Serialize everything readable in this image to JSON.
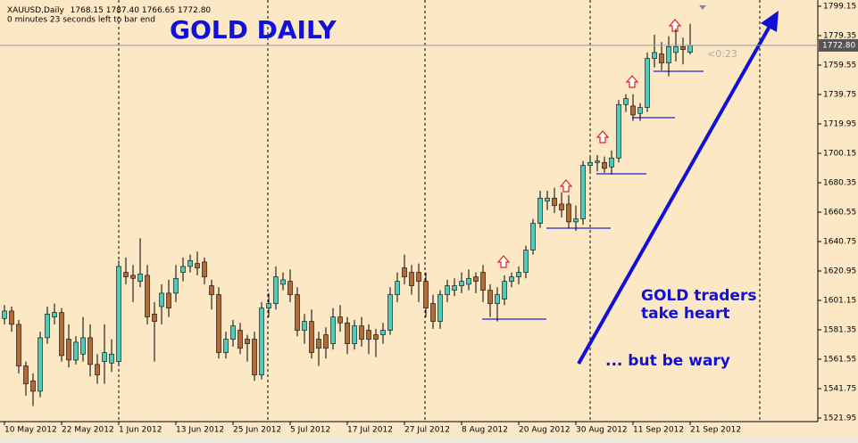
{
  "chart_data": {
    "type": "candlestick",
    "title": "GOLD DAILY",
    "header": {
      "symbol": "XAUUSD,Daily",
      "ohlc": [
        "1768.15",
        "1787.40",
        "1766.65",
        "1772.80"
      ]
    },
    "countdown": "0 minutes 23 seconds left to bar end",
    "timer": "<0:23",
    "annotations": [
      "GOLD traders",
      "take heart",
      "... but be wary"
    ],
    "categories": [
      "10 May 2012",
      null,
      null,
      null,
      null,
      null,
      null,
      null,
      "22 May 2012",
      null,
      null,
      null,
      null,
      null,
      null,
      null,
      "1 Jun 2012",
      null,
      null,
      null,
      null,
      null,
      null,
      null,
      "13 Jun 2012",
      null,
      null,
      null,
      null,
      null,
      null,
      null,
      "25 Jun 2012",
      null,
      null,
      null,
      null,
      null,
      null,
      null,
      "5 Jul 2012",
      null,
      null,
      null,
      null,
      null,
      null,
      null,
      "17 Jul 2012",
      null,
      null,
      null,
      null,
      null,
      null,
      null,
      "27 Jul 2012",
      null,
      null,
      null,
      null,
      null,
      null,
      null,
      "8 Aug 2012",
      null,
      null,
      null,
      null,
      null,
      null,
      null,
      "20 Aug 2012",
      null,
      null,
      null,
      null,
      null,
      null,
      null,
      "30 Aug 2012",
      null,
      null,
      null,
      null,
      null,
      null,
      null,
      "11 Sep 2012",
      null,
      null,
      null,
      null,
      null,
      null,
      null,
      "21 Sep 2012"
    ],
    "open": [
      1589,
      1594,
      1585,
      1557,
      1547,
      1540,
      1576,
      1590,
      1593,
      1575,
      1561,
      1565,
      1576,
      1558,
      1560,
      1559,
      1560,
      1620,
      1618,
      1614,
      1618,
      1592,
      1597,
      1606,
      1606,
      1620,
      1624,
      1626,
      1627,
      1611,
      1605,
      1566,
      1575,
      1581,
      1575,
      1575,
      1551,
      1596,
      1599,
      1612,
      1614,
      1605,
      1581,
      1587,
      1575,
      1578,
      1572,
      1590,
      1586,
      1572,
      1584,
      1581,
      1578,
      1578,
      1581,
      1605,
      1623,
      1620,
      1620,
      1614,
      1599,
      1587,
      1605,
      1608,
      1611,
      1612,
      1617,
      1620,
      1608,
      1599,
      1602,
      1614,
      1617,
      1620,
      1635,
      1653,
      1668,
      1670,
      1666,
      1666,
      1654,
      1656,
      1692,
      1694,
      1694,
      1691,
      1697,
      1733,
      1732,
      1727,
      1731,
      1764,
      1767,
      1761,
      1768,
      1772,
      1768.15
    ],
    "high": [
      1598,
      1597,
      1588,
      1560,
      1552,
      1580,
      1597,
      1599,
      1596,
      1585,
      1577,
      1590,
      1585,
      1565,
      1585,
      1575,
      1628,
      1630,
      1625,
      1643,
      1625,
      1600,
      1612,
      1615,
      1625,
      1630,
      1632,
      1634,
      1630,
      1615,
      1610,
      1580,
      1588,
      1586,
      1578,
      1580,
      1600,
      1606,
      1624,
      1620,
      1622,
      1610,
      1592,
      1595,
      1580,
      1583,
      1596,
      1598,
      1590,
      1588,
      1590,
      1585,
      1582,
      1586,
      1610,
      1620,
      1632,
      1625,
      1626,
      1620,
      1605,
      1608,
      1615,
      1616,
      1620,
      1622,
      1620,
      1625,
      1612,
      1610,
      1618,
      1620,
      1624,
      1638,
      1656,
      1675,
      1675,
      1677,
      1674,
      1672,
      1665,
      1695,
      1698,
      1699,
      1698,
      1702,
      1736,
      1740,
      1740,
      1734,
      1768,
      1780,
      1775,
      1779,
      1784,
      1778,
      1787.4
    ],
    "low": [
      1585,
      1580,
      1552,
      1537,
      1530,
      1536,
      1572,
      1585,
      1560,
      1556,
      1558,
      1560,
      1550,
      1545,
      1545,
      1553,
      1557,
      1612,
      1600,
      1610,
      1585,
      1560,
      1585,
      1590,
      1600,
      1614,
      1620,
      1618,
      1612,
      1595,
      1562,
      1562,
      1570,
      1565,
      1560,
      1547,
      1548,
      1590,
      1595,
      1608,
      1600,
      1577,
      1572,
      1562,
      1557,
      1562,
      1568,
      1580,
      1565,
      1568,
      1570,
      1565,
      1563,
      1572,
      1578,
      1600,
      1612,
      1605,
      1600,
      1590,
      1582,
      1582,
      1600,
      1604,
      1606,
      1608,
      1606,
      1600,
      1590,
      1587,
      1598,
      1610,
      1612,
      1616,
      1632,
      1650,
      1662,
      1660,
      1657,
      1650,
      1648,
      1652,
      1688,
      1688,
      1687,
      1686,
      1694,
      1728,
      1722,
      1722,
      1728,
      1758,
      1756,
      1752,
      1762,
      1760,
      1766.65
    ],
    "close": [
      1594,
      1585,
      1557,
      1545,
      1540,
      1576,
      1592,
      1593,
      1564,
      1561,
      1573,
      1576,
      1558,
      1551,
      1566,
      1565,
      1624,
      1617,
      1616,
      1619,
      1590,
      1587,
      1606,
      1596,
      1616,
      1624,
      1628,
      1623,
      1617,
      1605,
      1566,
      1575,
      1584,
      1569,
      1572,
      1551,
      1596,
      1599,
      1617,
      1615,
      1605,
      1581,
      1587,
      1566,
      1569,
      1569,
      1590,
      1586,
      1572,
      1584,
      1575,
      1575,
      1575,
      1581,
      1605,
      1614,
      1617,
      1611,
      1614,
      1596,
      1587,
      1605,
      1611,
      1611,
      1614,
      1616,
      1614,
      1608,
      1599,
      1605,
      1614,
      1617,
      1620,
      1635,
      1653,
      1670,
      1670,
      1665,
      1662,
      1654,
      1656,
      1692,
      1694,
      1695,
      1690,
      1697,
      1733,
      1737,
      1726,
      1731,
      1764,
      1768,
      1761,
      1772,
      1772,
      1770,
      1772.8
    ],
    "colors": {
      "up": "#4fcbbb",
      "down": "#b26b38"
    },
    "ylim": [
      1519.55,
      1803.35
    ],
    "yticks": [
      1521.95,
      1541.75,
      1561.55,
      1581.35,
      1601.15,
      1620.95,
      1640.75,
      1660.55,
      1680.35,
      1700.15,
      1719.95,
      1739.75,
      1759.55,
      1779.35,
      1799.15
    ]
  }
}
